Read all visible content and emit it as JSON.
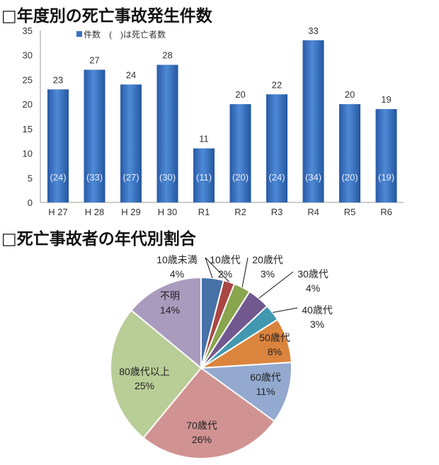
{
  "chart_data": [
    {
      "type": "bar",
      "title": "□年度別の死亡事故発生件数",
      "legend": "件数　(　)は死亡者数",
      "legend_placement": "top",
      "categories": [
        "H 27",
        "H 28",
        "H 29",
        "H 30",
        "R1",
        "R2",
        "R3",
        "R4",
        "R5",
        "R6"
      ],
      "series": [
        {
          "name": "件数",
          "values": [
            23,
            27,
            24,
            28,
            11,
            20,
            22,
            33,
            20,
            19
          ]
        },
        {
          "name": "死亡者数",
          "values": [
            24,
            33,
            27,
            30,
            11,
            20,
            24,
            34,
            20,
            19
          ]
        }
      ],
      "ylim": [
        0,
        35
      ],
      "yticks": [
        0,
        5,
        10,
        15,
        20,
        25,
        30,
        35
      ],
      "grid": false,
      "color": "#3a72c4"
    },
    {
      "type": "pie",
      "title": "□死亡事故者の年代別割合",
      "slices": [
        {
          "label": "10歳未満",
          "value": 4,
          "color": "#4672a8"
        },
        {
          "label": "10歳代",
          "value": 2,
          "color": "#aa4643"
        },
        {
          "label": "20歳代",
          "value": 3,
          "color": "#89a54e"
        },
        {
          "label": "30歳代",
          "value": 4,
          "color": "#71588f"
        },
        {
          "label": "40歳代",
          "value": 3,
          "color": "#4198af"
        },
        {
          "label": "50歳代",
          "value": 8,
          "color": "#db843d"
        },
        {
          "label": "60歳代",
          "value": 11,
          "color": "#93a9cf"
        },
        {
          "label": "70歳代",
          "value": 26,
          "color": "#d19392"
        },
        {
          "label": "80歳代以上",
          "value": 25,
          "color": "#b9cd96"
        },
        {
          "label": "不明",
          "value": 14,
          "color": "#a99bbd"
        }
      ]
    }
  ]
}
